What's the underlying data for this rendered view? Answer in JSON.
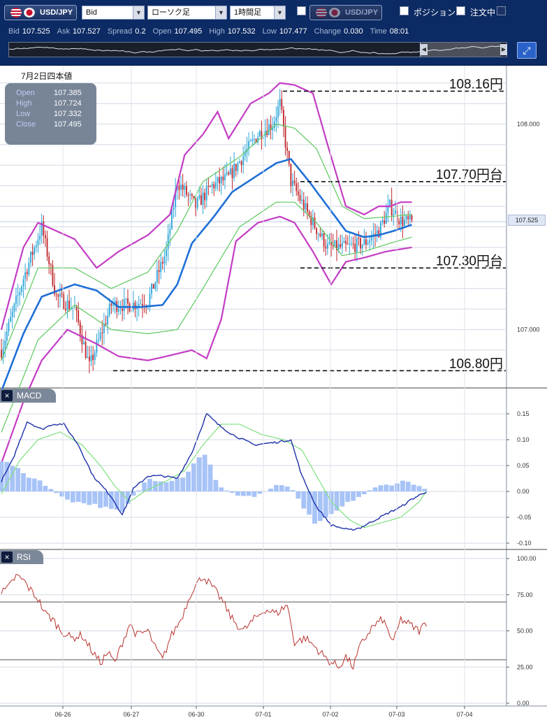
{
  "toolbar": {
    "pair": "USD/JPY",
    "price_side": "Bid",
    "chart_type": "ローソク足",
    "timeframe": "1時間足",
    "compare_pair": "USD/JPY",
    "position_label": "ポジション",
    "orders_label": "注文中"
  },
  "quotes": [
    {
      "label": "Bid",
      "value": "107.525"
    },
    {
      "label": "Ask",
      "value": "107.527"
    },
    {
      "label": "Spread",
      "value": "0.2"
    },
    {
      "label": "Open",
      "value": "107.495"
    },
    {
      "label": "High",
      "value": "107.532"
    },
    {
      "label": "Low",
      "value": "107.477"
    },
    {
      "label": "Change",
      "value": "0.030"
    },
    {
      "label": "Time",
      "value": "08:01"
    }
  ],
  "ohlc": {
    "date_label": "7月2日四本値",
    "rows": [
      {
        "label": "Open",
        "value": "107.385"
      },
      {
        "label": "High",
        "value": "107.724"
      },
      {
        "label": "Low",
        "value": "107.332"
      },
      {
        "label": "Close",
        "value": "107.495"
      }
    ]
  },
  "panels": {
    "macd_label": "MACD",
    "rsi_label": "RSI",
    "close_icon": "×"
  },
  "current_price_tag": "107.525",
  "colors": {
    "bull": "#2fa6d8",
    "bear": "#c0272d",
    "mid_band": "#1f6fd6",
    "outer_band": "#c43cc4",
    "inner_band": "#5cc95c",
    "macd_line": "#1c2fa8",
    "signal_line": "#7ee07e",
    "histogram": "#a7c3f7",
    "rsi_line": "#b8332e"
  },
  "chart_data": [
    {
      "type": "candlestick",
      "panel": "price",
      "y_ticks": [
        "108.000",
        "107.000"
      ],
      "ylim": [
        106.75,
        108.25
      ],
      "x_categories": [
        "06-26",
        "06-27",
        "06-30",
        "07-01",
        "07-02",
        "07-03",
        "07-04"
      ],
      "annotations": [
        {
          "label": "108.16円",
          "value": 108.16
        },
        {
          "label": "107.70円台",
          "value": 107.72
        },
        {
          "label": "107.30円台",
          "value": 107.3
        },
        {
          "label": "106.80円",
          "value": 106.8
        }
      ],
      "series_anchors": {
        "close": [
          [
            0,
            106.9
          ],
          [
            12,
            107.25
          ],
          [
            22,
            107.5
          ],
          [
            30,
            107.16
          ],
          [
            40,
            107.1
          ],
          [
            48,
            106.82
          ],
          [
            60,
            107.12
          ],
          [
            70,
            107.12
          ],
          [
            80,
            107.14
          ],
          [
            90,
            107.38
          ],
          [
            96,
            107.72
          ],
          [
            106,
            107.6
          ],
          [
            115,
            107.7
          ],
          [
            124,
            107.74
          ],
          [
            130,
            107.82
          ],
          [
            140,
            107.95
          ],
          [
            148,
            108.0
          ],
          [
            152,
            108.1
          ],
          [
            158,
            107.72
          ],
          [
            168,
            107.55
          ],
          [
            178,
            107.4
          ],
          [
            188,
            107.4
          ],
          [
            198,
            107.42
          ],
          [
            206,
            107.48
          ],
          [
            212,
            107.6
          ],
          [
            218,
            107.53
          ],
          [
            224,
            107.52
          ]
        ],
        "upper_band": [
          [
            0,
            107.0
          ],
          [
            12,
            107.4
          ],
          [
            20,
            107.52
          ],
          [
            40,
            107.44
          ],
          [
            52,
            107.3
          ],
          [
            64,
            107.38
          ],
          [
            80,
            107.46
          ],
          [
            92,
            107.56
          ],
          [
            100,
            107.85
          ],
          [
            110,
            107.95
          ],
          [
            118,
            108.06
          ],
          [
            124,
            107.93
          ],
          [
            136,
            108.1
          ],
          [
            146,
            108.15
          ],
          [
            152,
            108.2
          ],
          [
            160,
            108.19
          ],
          [
            170,
            108.15
          ],
          [
            178,
            107.9
          ],
          [
            188,
            107.6
          ],
          [
            198,
            107.56
          ],
          [
            206,
            107.6
          ],
          [
            212,
            107.6
          ],
          [
            218,
            107.62
          ],
          [
            224,
            107.62
          ]
        ],
        "middle_band": [
          [
            0,
            106.7
          ],
          [
            12,
            106.98
          ],
          [
            22,
            107.16
          ],
          [
            40,
            107.22
          ],
          [
            52,
            107.19
          ],
          [
            64,
            107.11
          ],
          [
            76,
            107.11
          ],
          [
            88,
            107.12
          ],
          [
            96,
            107.22
          ],
          [
            104,
            107.42
          ],
          [
            116,
            107.55
          ],
          [
            126,
            107.67
          ],
          [
            138,
            107.74
          ],
          [
            150,
            107.81
          ],
          [
            158,
            107.83
          ],
          [
            168,
            107.72
          ],
          [
            178,
            107.6
          ],
          [
            188,
            107.48
          ],
          [
            198,
            107.45
          ],
          [
            206,
            107.46
          ],
          [
            214,
            107.48
          ],
          [
            224,
            107.51
          ]
        ],
        "lower_band": [
          [
            0,
            106.35
          ],
          [
            12,
            106.65
          ],
          [
            22,
            106.85
          ],
          [
            36,
            107.0
          ],
          [
            52,
            106.93
          ],
          [
            64,
            106.87
          ],
          [
            80,
            106.85
          ],
          [
            90,
            106.87
          ],
          [
            104,
            106.9
          ],
          [
            112,
            106.86
          ],
          [
            120,
            107.05
          ],
          [
            128,
            107.43
          ],
          [
            140,
            107.52
          ],
          [
            152,
            107.55
          ],
          [
            160,
            107.52
          ],
          [
            170,
            107.38
          ],
          [
            180,
            107.22
          ],
          [
            188,
            107.33
          ],
          [
            198,
            107.35
          ],
          [
            210,
            107.38
          ],
          [
            224,
            107.4
          ]
        ],
        "upper_inner": [
          [
            0,
            106.85
          ],
          [
            20,
            107.3
          ],
          [
            40,
            107.3
          ],
          [
            60,
            107.2
          ],
          [
            80,
            107.28
          ],
          [
            96,
            107.48
          ],
          [
            110,
            107.72
          ],
          [
            130,
            107.84
          ],
          [
            150,
            108.0
          ],
          [
            160,
            107.98
          ],
          [
            172,
            107.88
          ],
          [
            186,
            107.6
          ],
          [
            198,
            107.54
          ],
          [
            212,
            107.55
          ],
          [
            224,
            107.56
          ]
        ],
        "lower_inner": [
          [
            0,
            106.5
          ],
          [
            20,
            106.95
          ],
          [
            40,
            107.12
          ],
          [
            60,
            107.0
          ],
          [
            80,
            106.98
          ],
          [
            96,
            107.0
          ],
          [
            110,
            107.2
          ],
          [
            130,
            107.5
          ],
          [
            150,
            107.62
          ],
          [
            160,
            107.62
          ],
          [
            172,
            107.52
          ],
          [
            186,
            107.36
          ],
          [
            198,
            107.38
          ],
          [
            212,
            107.42
          ],
          [
            224,
            107.45
          ]
        ]
      }
    },
    {
      "type": "line",
      "panel": "macd",
      "title": "MACD",
      "y_ticks": [
        "0.15",
        "0.10",
        "0.05",
        "0.00",
        "-0.05",
        "-0.10"
      ],
      "ylim": [
        -0.1,
        0.15
      ],
      "series_anchors": {
        "macd": [
          [
            0,
            0.02
          ],
          [
            6,
            0.06
          ],
          [
            14,
            0.135
          ],
          [
            22,
            0.12
          ],
          [
            28,
            0.13
          ],
          [
            34,
            0.13
          ],
          [
            42,
            0.09
          ],
          [
            50,
            0.03
          ],
          [
            60,
            -0.01
          ],
          [
            66,
            -0.045
          ],
          [
            72,
            0.005
          ],
          [
            80,
            0.03
          ],
          [
            88,
            0.03
          ],
          [
            96,
            0.025
          ],
          [
            104,
            0.075
          ],
          [
            112,
            0.15
          ],
          [
            118,
            0.13
          ],
          [
            126,
            0.11
          ],
          [
            138,
            0.09
          ],
          [
            150,
            0.095
          ],
          [
            158,
            0.1
          ],
          [
            164,
            0.03
          ],
          [
            172,
            -0.03
          ],
          [
            180,
            -0.065
          ],
          [
            190,
            -0.075
          ],
          [
            196,
            -0.07
          ],
          [
            204,
            -0.055
          ],
          [
            212,
            -0.04
          ],
          [
            218,
            -0.03
          ],
          [
            224,
            -0.015
          ],
          [
            232,
            0.0
          ]
        ],
        "signal": [
          [
            0,
            -0.005
          ],
          [
            10,
            0.06
          ],
          [
            20,
            0.1
          ],
          [
            32,
            0.115
          ],
          [
            44,
            0.09
          ],
          [
            54,
            0.05
          ],
          [
            62,
            0.01
          ],
          [
            70,
            -0.02
          ],
          [
            78,
            0.0
          ],
          [
            90,
            0.02
          ],
          [
            100,
            0.04
          ],
          [
            110,
            0.09
          ],
          [
            120,
            0.13
          ],
          [
            130,
            0.13
          ],
          [
            142,
            0.11
          ],
          [
            154,
            0.1
          ],
          [
            164,
            0.08
          ],
          [
            172,
            0.03
          ],
          [
            180,
            -0.02
          ],
          [
            190,
            -0.055
          ],
          [
            198,
            -0.07
          ],
          [
            208,
            -0.06
          ],
          [
            218,
            -0.05
          ],
          [
            228,
            -0.02
          ],
          [
            232,
            0.0
          ]
        ],
        "histogram": [
          [
            0,
            0.06
          ],
          [
            6,
            0.05
          ],
          [
            14,
            0.03
          ],
          [
            22,
            0.02
          ],
          [
            30,
            -0.005
          ],
          [
            40,
            -0.02
          ],
          [
            50,
            -0.025
          ],
          [
            60,
            -0.035
          ],
          [
            66,
            -0.04
          ],
          [
            72,
            -0.01
          ],
          [
            80,
            0.025
          ],
          [
            90,
            0.02
          ],
          [
            100,
            0.03
          ],
          [
            106,
            0.06
          ],
          [
            112,
            0.075
          ],
          [
            118,
            0.01
          ],
          [
            126,
            -0.005
          ],
          [
            138,
            -0.01
          ],
          [
            150,
            0.01
          ],
          [
            158,
            0.01
          ],
          [
            164,
            -0.03
          ],
          [
            172,
            -0.065
          ],
          [
            180,
            -0.045
          ],
          [
            190,
            -0.02
          ],
          [
            198,
            -0.005
          ],
          [
            206,
            0.01
          ],
          [
            214,
            0.015
          ],
          [
            220,
            0.02
          ],
          [
            226,
            0.015
          ],
          [
            232,
            0.0
          ]
        ]
      }
    },
    {
      "type": "line",
      "panel": "rsi",
      "title": "RSI",
      "y_ticks": [
        "100.00",
        "75.00",
        "50.00",
        "25.00",
        "0.00"
      ],
      "ylim": [
        0,
        100
      ],
      "levels": [
        70,
        30
      ],
      "series_anchors": {
        "rsi": [
          [
            0,
            76
          ],
          [
            4,
            80
          ],
          [
            8,
            88
          ],
          [
            12,
            85
          ],
          [
            16,
            78
          ],
          [
            20,
            72
          ],
          [
            24,
            62
          ],
          [
            28,
            58
          ],
          [
            32,
            51
          ],
          [
            38,
            45
          ],
          [
            44,
            47
          ],
          [
            50,
            35
          ],
          [
            54,
            28
          ],
          [
            58,
            35
          ],
          [
            62,
            28
          ],
          [
            66,
            42
          ],
          [
            70,
            55
          ],
          [
            74,
            47
          ],
          [
            80,
            50
          ],
          [
            84,
            38
          ],
          [
            88,
            30
          ],
          [
            92,
            45
          ],
          [
            98,
            58
          ],
          [
            104,
            78
          ],
          [
            110,
            88
          ],
          [
            114,
            82
          ],
          [
            120,
            72
          ],
          [
            126,
            58
          ],
          [
            132,
            50
          ],
          [
            138,
            58
          ],
          [
            144,
            65
          ],
          [
            150,
            62
          ],
          [
            156,
            68
          ],
          [
            160,
            42
          ],
          [
            166,
            45
          ],
          [
            172,
            38
          ],
          [
            178,
            30
          ],
          [
            184,
            25
          ],
          [
            188,
            32
          ],
          [
            192,
            25
          ],
          [
            196,
            40
          ],
          [
            202,
            52
          ],
          [
            208,
            58
          ],
          [
            214,
            42
          ],
          [
            218,
            58
          ],
          [
            222,
            55
          ],
          [
            228,
            50
          ],
          [
            232,
            56
          ]
        ]
      }
    }
  ]
}
